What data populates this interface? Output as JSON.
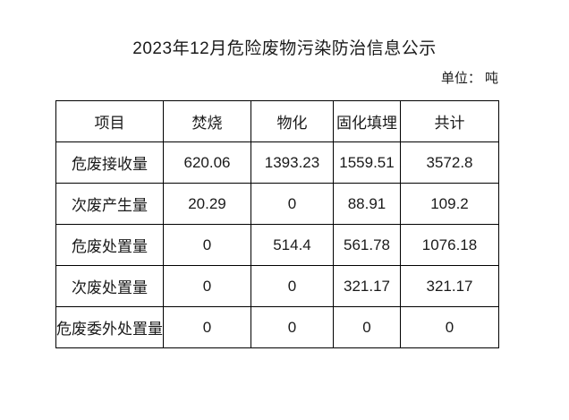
{
  "page": {
    "title": "2023年12月危险废物污染防治信息公示",
    "unit_label": "单位： 吨"
  },
  "colors": {
    "background": "#ffffff",
    "text": "#1a1a1a",
    "border": "#000000"
  },
  "chart_data": {
    "type": "table",
    "title": "2023年12月危险废物污染防治信息公示",
    "unit": "吨",
    "columns": [
      "项目",
      "焚烧",
      "物化",
      "固化填埋",
      "共计"
    ],
    "rows": [
      {
        "label": "危废接收量",
        "values": [
          "620.06",
          "1393.23",
          "1559.51",
          "3572.8"
        ]
      },
      {
        "label": "次废产生量",
        "values": [
          "20.29",
          "0",
          "88.91",
          "109.2"
        ]
      },
      {
        "label": "危废处置量",
        "values": [
          "0",
          "514.4",
          "561.78",
          "1076.18"
        ]
      },
      {
        "label": "次废处置量",
        "values": [
          "0",
          "0",
          "321.17",
          "321.17"
        ]
      },
      {
        "label": "危废委外处置量",
        "values": [
          "0",
          "0",
          "0",
          "0"
        ]
      }
    ]
  }
}
